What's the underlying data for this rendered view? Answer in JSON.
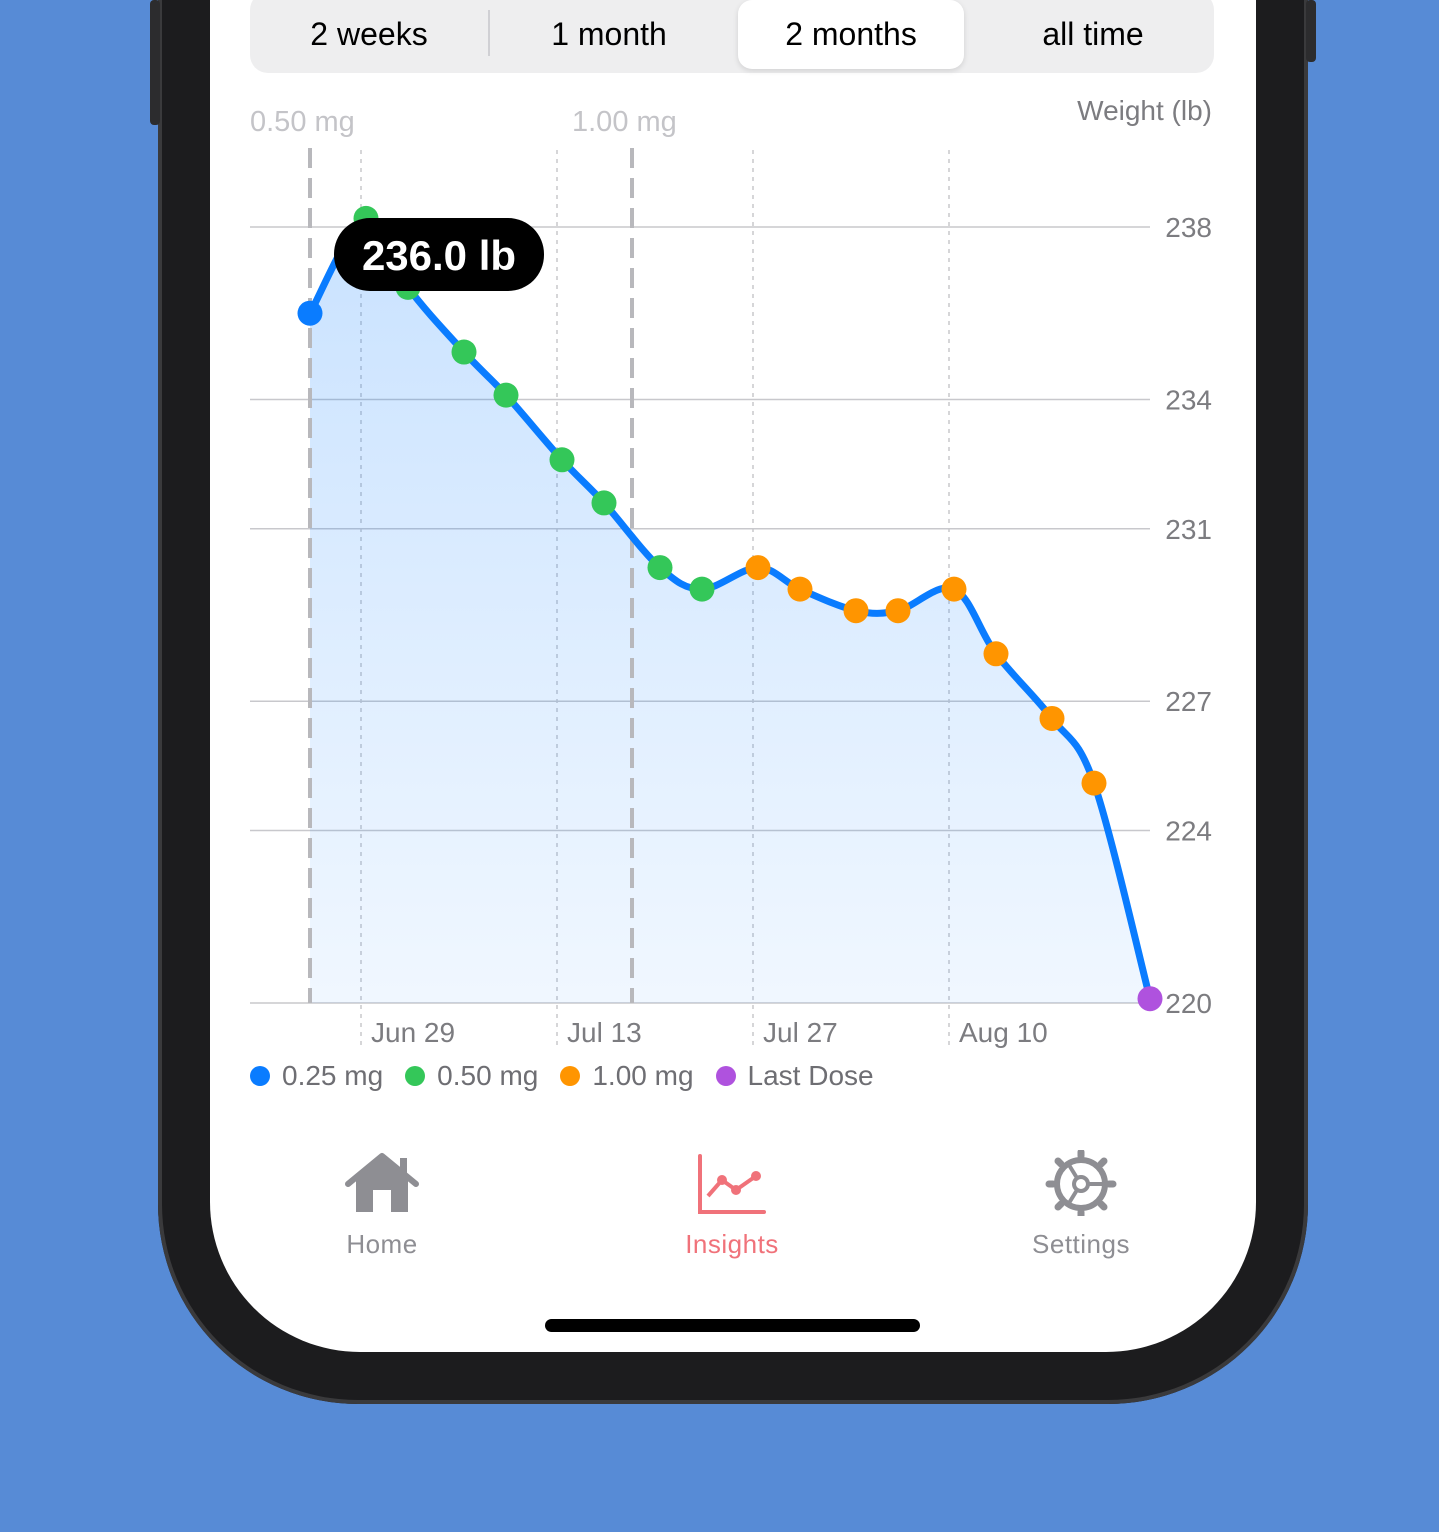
{
  "range_selector": {
    "options": [
      "2 weeks",
      "1 month",
      "2 months",
      "all time"
    ],
    "selected": "2 months"
  },
  "dose_markers": [
    {
      "label": "0.50 mg",
      "date": "2024-06-20"
    },
    {
      "label": "1.00 mg",
      "date": "2024-07-13"
    }
  ],
  "tooltip": {
    "text": "236.0 lb"
  },
  "legend": [
    {
      "label": "0.25 mg",
      "color": "#0a7cff"
    },
    {
      "label": "0.50 mg",
      "color": "#34c759"
    },
    {
      "label": "1.00 mg",
      "color": "#ff9500"
    },
    {
      "label": "Last Dose",
      "color": "#af52de"
    }
  ],
  "tabbar": {
    "items": [
      {
        "label": "Home",
        "icon": "house-icon",
        "color": "#8e8e93"
      },
      {
        "label": "Insights",
        "icon": "chart-line-icon",
        "color": "#f0727a"
      },
      {
        "label": "Settings",
        "icon": "gear-icon",
        "color": "#8e8e93"
      }
    ],
    "active": "Insights"
  },
  "chart_data": {
    "type": "line",
    "ylabel": "Weight (lb)",
    "y_ticks": [
      238,
      234,
      231,
      227,
      224,
      220
    ],
    "x_ticks": [
      "Jun 29",
      "Jul 13",
      "Jul 27",
      "Aug 10"
    ],
    "x_tick_dates": [
      "2024-06-29",
      "2024-07-13",
      "2024-07-27",
      "2024-08-10"
    ],
    "xlim": [
      "2024-06-20",
      "2024-08-19"
    ],
    "ylim": [
      220,
      238
    ],
    "grid": true,
    "fill_area": true,
    "legend_position": "bottom-left",
    "series": [
      {
        "name": "0.25 mg",
        "color": "#0a7cff",
        "points": [
          {
            "x": "2024-06-20",
            "y": 236.0
          }
        ]
      },
      {
        "name": "0.50 mg",
        "color": "#34c759",
        "points": [
          {
            "x": "2024-06-24",
            "y": 238.2
          },
          {
            "x": "2024-06-27",
            "y": 236.6
          },
          {
            "x": "2024-07-01",
            "y": 235.1
          },
          {
            "x": "2024-07-04",
            "y": 234.1
          },
          {
            "x": "2024-07-08",
            "y": 232.6
          },
          {
            "x": "2024-07-11",
            "y": 231.6
          },
          {
            "x": "2024-07-15",
            "y": 230.1
          },
          {
            "x": "2024-07-18",
            "y": 229.6
          }
        ]
      },
      {
        "name": "1.00 mg",
        "color": "#ff9500",
        "points": [
          {
            "x": "2024-07-22",
            "y": 230.1
          },
          {
            "x": "2024-07-25",
            "y": 229.6
          },
          {
            "x": "2024-07-29",
            "y": 229.1
          },
          {
            "x": "2024-08-01",
            "y": 229.1
          },
          {
            "x": "2024-08-05",
            "y": 229.6
          },
          {
            "x": "2024-08-08",
            "y": 228.1
          },
          {
            "x": "2024-08-12",
            "y": 226.6
          },
          {
            "x": "2024-08-15",
            "y": 225.1
          }
        ]
      },
      {
        "name": "Last Dose",
        "color": "#af52de",
        "points": [
          {
            "x": "2024-08-19",
            "y": 220.1
          }
        ]
      }
    ]
  }
}
